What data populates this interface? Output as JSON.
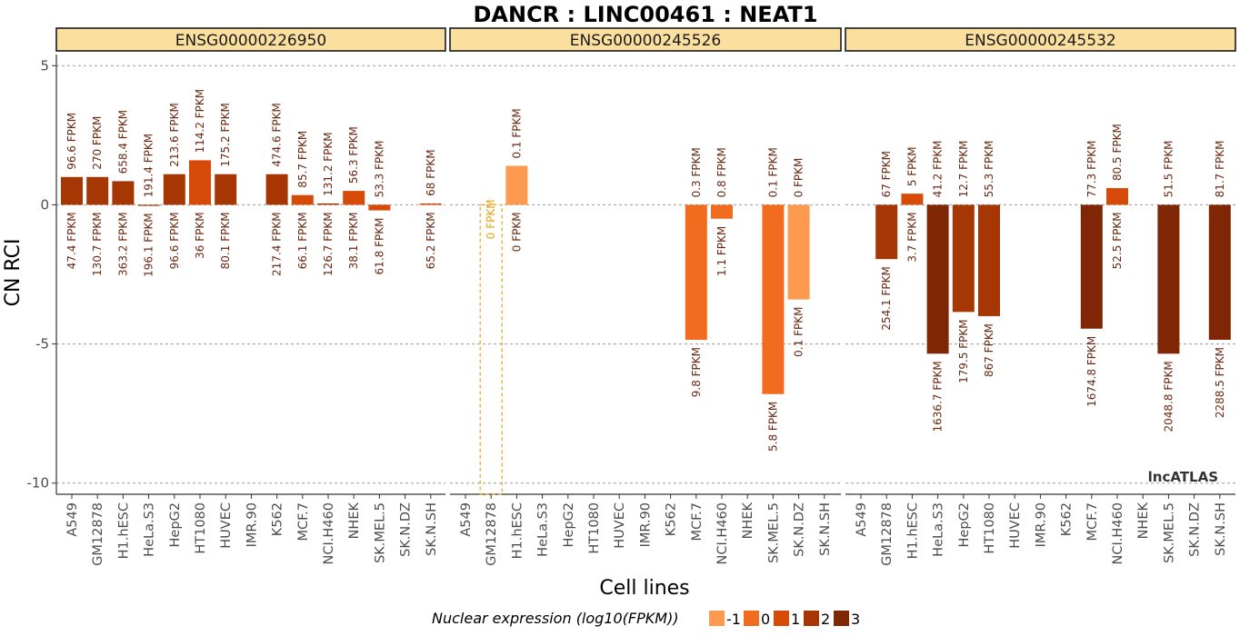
{
  "chart_data": {
    "type": "bar",
    "title": "DANCR : LINC00461 : NEAT1",
    "xlabel": "Cell lines",
    "ylabel": "CN RCI",
    "ylim": [
      -10.4,
      5.4
    ],
    "yticks": [
      5,
      0,
      -5,
      -10
    ],
    "ytick_labels": [
      "5",
      "0",
      "-5",
      "-10"
    ],
    "grid": "dashed horizontal at major ticks",
    "watermark": "lncATLAS",
    "categories": [
      "A549",
      "GM12878",
      "H1.hESC",
      "HeLa.S3",
      "HepG2",
      "HT1080",
      "HUVEC",
      "IMR.90",
      "K562",
      "MCF.7",
      "NCI.H460",
      "NHEK",
      "SK.MEL.5",
      "SK.N.DZ",
      "SK.N.SH"
    ],
    "legend": {
      "title": "Nuclear expression (log10(FPKM))",
      "placement": "bottom",
      "levels": [
        {
          "label": "-1",
          "color": "#fd9a50"
        },
        {
          "label": "0",
          "color": "#f26c1f"
        },
        {
          "label": "1",
          "color": "#d84a07"
        },
        {
          "label": "2",
          "color": "#a63603"
        },
        {
          "label": "3",
          "color": "#7f2704"
        }
      ]
    },
    "panels": [
      {
        "name": "ENSG00000226950",
        "values": [
          1.0,
          1.0,
          0.85,
          -0.03,
          1.1,
          1.6,
          1.1,
          null,
          1.1,
          0.35,
          0.05,
          0.5,
          -0.2,
          null,
          0.05
        ],
        "color_level": [
          2,
          2,
          2,
          2,
          2,
          1,
          2,
          null,
          2,
          1,
          2,
          1,
          1,
          null,
          1
        ],
        "nuc_label": [
          "96.6 FPKM",
          "270 FPKM",
          "658.4 FPKM",
          "191.4 FPKM",
          "213.6 FPKM",
          "114.2 FPKM",
          "175.2 FPKM",
          null,
          "474.6 FPKM",
          "85.7 FPKM",
          "131.2 FPKM",
          "56.3 FPKM",
          "53.3 FPKM",
          null,
          "68 FPKM"
        ],
        "cyto_label": [
          "47.4 FPKM",
          "130.7 FPKM",
          "363.2 FPKM",
          "196.1 FPKM",
          "96.6 FPKM",
          "36 FPKM",
          "80.1 FPKM",
          null,
          "217.4 FPKM",
          "66.1 FPKM",
          "126.7 FPKM",
          "38.1 FPKM",
          "61.8 FPKM",
          null,
          "65.2 FPKM"
        ]
      },
      {
        "name": "ENSG00000245526",
        "values": [
          null,
          -10.4,
          1.4,
          null,
          null,
          null,
          null,
          null,
          null,
          -4.85,
          -0.5,
          null,
          -6.8,
          -3.4,
          null
        ],
        "color_level": [
          null,
          -2,
          -1,
          null,
          null,
          null,
          null,
          null,
          null,
          0,
          0,
          null,
          0,
          -1,
          null
        ],
        "nuc_label": [
          null,
          "0 FPKM",
          "0.1 FPKM",
          null,
          null,
          null,
          null,
          null,
          null,
          "0.3 FPKM",
          "0.8 FPKM",
          null,
          "0.1 FPKM",
          "0 FPKM",
          null
        ],
        "cyto_label": [
          null,
          null,
          "0 FPKM",
          null,
          null,
          null,
          null,
          null,
          null,
          "9.8 FPKM",
          "1.1 FPKM",
          null,
          "5.8 FPKM",
          "0.1 FPKM",
          null
        ]
      },
      {
        "name": "ENSG00000245532",
        "values": [
          null,
          -1.95,
          0.4,
          -5.35,
          -3.85,
          -4.0,
          null,
          null,
          null,
          -4.45,
          0.6,
          null,
          -5.35,
          null,
          -4.85
        ],
        "color_level": [
          null,
          2,
          1,
          3,
          2,
          2,
          null,
          null,
          null,
          3,
          1,
          null,
          3,
          null,
          3
        ],
        "nuc_label": [
          null,
          "67 FPKM",
          "5 FPKM",
          "41.2 FPKM",
          "12.7 FPKM",
          "55.3 FPKM",
          null,
          null,
          null,
          "77.3 FPKM",
          "80.5 FPKM",
          null,
          "51.5 FPKM",
          null,
          "81.7 FPKM"
        ],
        "cyto_label": [
          null,
          "254.1 FPKM",
          "3.7 FPKM",
          "1636.7 FPKM",
          "179.5 FPKM",
          "867 FPKM",
          null,
          null,
          null,
          "1674.8 FPKM",
          "52.5 FPKM",
          null,
          "2048.8 FPKM",
          null,
          "2288.5 FPKM"
        ]
      }
    ]
  }
}
